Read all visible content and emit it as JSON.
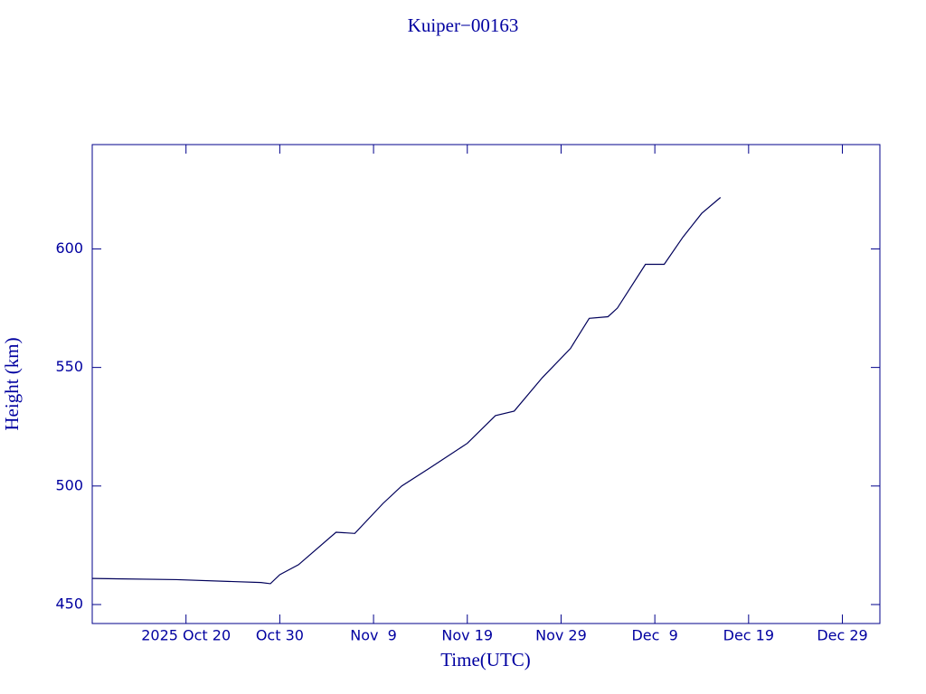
{
  "chart_data": {
    "type": "line",
    "title": "Kuiper−00163",
    "x_label": "Time(UTC)",
    "y_label": "Height (km)",
    "x": [
      "2025-10-10",
      "2025-10-19",
      "2025-10-28",
      "2025-10-29",
      "2025-10-30",
      "2025-11-01",
      "2025-11-05",
      "2025-11-07",
      "2025-11-10",
      "2025-11-12",
      "2025-11-15",
      "2025-11-19",
      "2025-11-22",
      "2025-11-24",
      "2025-11-27",
      "2025-11-30",
      "2025-12-02",
      "2025-12-04",
      "2025-12-05",
      "2025-12-08",
      "2025-12-10",
      "2025-12-12",
      "2025-12-14",
      "2025-12-16"
    ],
    "series": [
      {
        "name": "Height",
        "color": "#00005a",
        "values": [
          461,
          460.5,
          459.3,
          458.8,
          462.6,
          466.8,
          480.5,
          480,
          492.6,
          500,
          507.6,
          518,
          529.7,
          531.6,
          545.7,
          558,
          570.7,
          571.4,
          575,
          593.5,
          593.5,
          605,
          615,
          621.7
        ]
      }
    ],
    "xlim": [
      "2025-10-10",
      "2026-01-02"
    ],
    "xticks": [
      {
        "value": "2025-10-20",
        "label": "2025 Oct 20"
      },
      {
        "value": "2025-10-30",
        "label": "Oct 30"
      },
      {
        "value": "2025-11-09",
        "label": "Nov  9"
      },
      {
        "value": "2025-11-19",
        "label": "Nov 19"
      },
      {
        "value": "2025-11-29",
        "label": "Nov 29"
      },
      {
        "value": "2025-12-09",
        "label": "Dec  9"
      },
      {
        "value": "2025-12-19",
        "label": "Dec 19"
      },
      {
        "value": "2025-12-29",
        "label": "Dec 29"
      }
    ],
    "ylim": [
      442,
      644
    ],
    "yticks": [
      450,
      500,
      550,
      600
    ],
    "grid": false,
    "axis_color": "#00008b",
    "text_color": "#0000a0"
  }
}
